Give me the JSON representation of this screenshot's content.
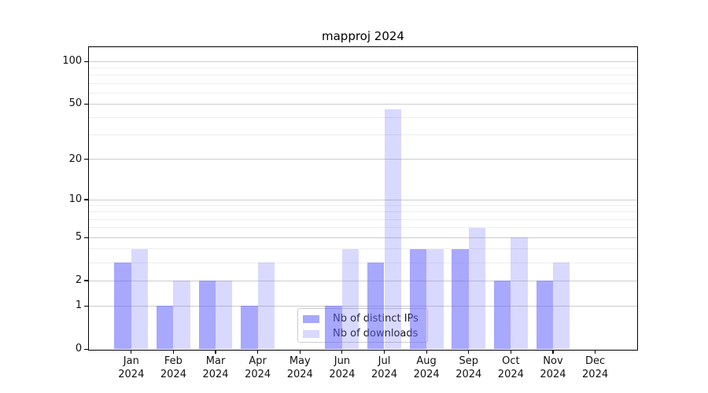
{
  "chart_data": {
    "type": "bar",
    "title": "mapproj 2024",
    "categories": [
      "Jan",
      "Feb",
      "Mar",
      "Apr",
      "May",
      "Jun",
      "Jul",
      "Aug",
      "Sep",
      "Oct",
      "Nov",
      "Dec"
    ],
    "x_year_line": "2024",
    "series": [
      {
        "name": "Nb of distinct IPs",
        "base_color": "#6666ff",
        "alpha": 0.57,
        "rendered_color": "#a8a8f6",
        "values": [
          3,
          1,
          2,
          1,
          0,
          1,
          3,
          4,
          4,
          2,
          2,
          0
        ]
      },
      {
        "name": "Nb of downloads",
        "base_color": "#6666ff",
        "alpha": 0.25,
        "rendered_color": "#d9d9f7",
        "values": [
          4,
          2,
          2,
          3,
          0,
          4,
          46,
          4,
          6,
          5,
          3,
          0
        ]
      }
    ],
    "y_axis": {
      "scale": "log1p",
      "ticks": [
        0,
        1,
        2,
        5,
        10,
        20,
        50,
        100
      ],
      "minor_ticks": [
        3,
        4,
        6,
        7,
        8,
        9,
        30,
        40,
        60,
        70,
        80,
        90
      ],
      "ylim": [
        0,
        123
      ]
    },
    "grid": {
      "major_color": "#cccccc",
      "minor_color": "#ededed"
    },
    "legend": {
      "location": "lower-center-inside",
      "border_color": "#cccccc"
    }
  }
}
